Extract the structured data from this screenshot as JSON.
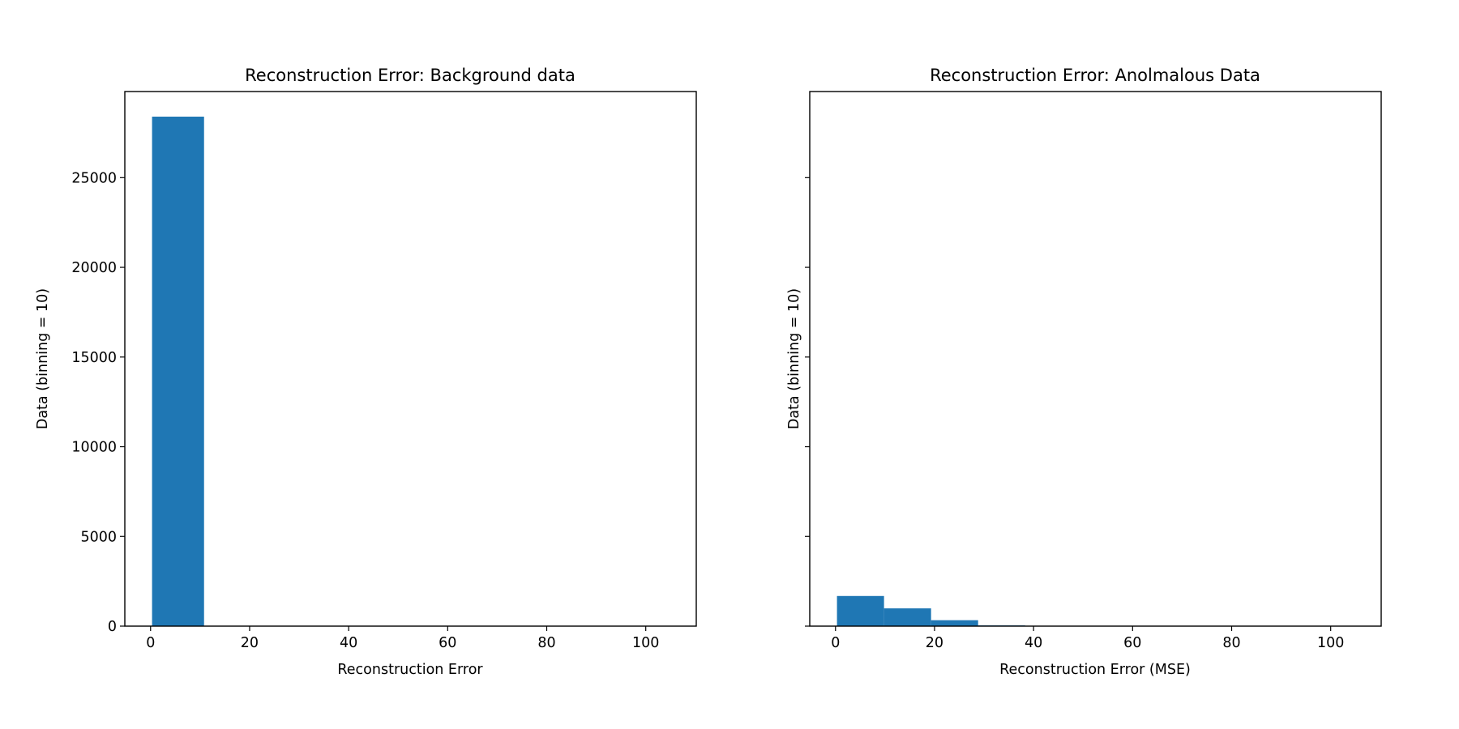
{
  "chart_data": [
    {
      "type": "bar",
      "title": "Reconstruction Error: Background data",
      "xlabel": "Reconstruction Error",
      "ylabel": "Data (binning = 10)",
      "xlim": [
        -5.2,
        110.2
      ],
      "ylim": [
        0,
        29800
      ],
      "xticks": [
        0,
        20,
        40,
        60,
        80,
        100
      ],
      "yticks": [
        0,
        5000,
        10000,
        15000,
        20000,
        25000
      ],
      "show_ytick_labels": true,
      "grid": false,
      "color": "#1f77b4",
      "bins": [
        {
          "x0": 0.3,
          "x1": 10.8,
          "count": 28400
        }
      ]
    },
    {
      "type": "bar",
      "title": "Reconstruction Error: Anolmalous Data",
      "xlabel": "Reconstruction Error (MSE)",
      "ylabel": "Data (binning = 10)",
      "xlim": [
        -5.2,
        110.2
      ],
      "ylim": [
        0,
        29800
      ],
      "xticks": [
        0,
        20,
        40,
        60,
        80,
        100
      ],
      "yticks": [
        0,
        5000,
        10000,
        15000,
        20000,
        25000
      ],
      "show_ytick_labels": false,
      "grid": false,
      "color": "#1f77b4",
      "bins": [
        {
          "x0": 0.3,
          "x1": 9.8,
          "count": 1680
        },
        {
          "x0": 9.8,
          "x1": 19.3,
          "count": 990
        },
        {
          "x0": 19.3,
          "x1": 28.8,
          "count": 330
        },
        {
          "x0": 28.8,
          "x1": 38.3,
          "count": 40
        },
        {
          "x0": 38.3,
          "x1": 47.8,
          "count": 10
        },
        {
          "x0": 47.8,
          "x1": 57.3,
          "count": 5
        },
        {
          "x0": 57.3,
          "x1": 66.8,
          "count": 3
        },
        {
          "x0": 66.8,
          "x1": 76.3,
          "count": 2
        },
        {
          "x0": 76.3,
          "x1": 85.8,
          "count": 1
        },
        {
          "x0": 85.8,
          "x1": 95.3,
          "count": 1
        }
      ]
    }
  ]
}
